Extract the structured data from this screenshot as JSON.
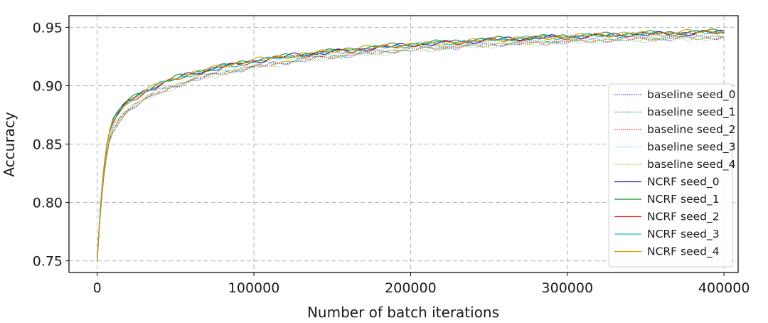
{
  "chart_data": {
    "type": "line",
    "title": "",
    "xlabel": "Number of batch iterations",
    "ylabel": "Accuracy",
    "xlim": [
      -18000,
      409000
    ],
    "ylim": [
      0.74,
      0.96
    ],
    "xticks": [
      0,
      100000,
      200000,
      300000,
      400000
    ],
    "xtick_labels": [
      "0",
      "100000",
      "200000",
      "300000",
      "400000"
    ],
    "yticks": [
      0.75,
      0.8,
      0.85,
      0.9,
      0.95
    ],
    "ytick_labels": [
      "0.75",
      "0.80",
      "0.85",
      "0.90",
      "0.95"
    ],
    "grid": true,
    "legend_position": "right",
    "x": [
      0,
      2500,
      5000,
      7500,
      10000,
      15000,
      20000,
      30000,
      40000,
      50000,
      60000,
      80000,
      100000,
      125000,
      150000,
      175000,
      200000,
      225000,
      250000,
      275000,
      300000,
      325000,
      350000,
      375000,
      400000
    ],
    "series": [
      {
        "name": "baseline seed_0",
        "color": "#3b4cc0",
        "style": "dotted",
        "values": [
          0.75,
          0.8,
          0.833,
          0.852,
          0.862,
          0.873,
          0.88,
          0.888,
          0.895,
          0.9,
          0.905,
          0.911,
          0.916,
          0.921,
          0.925,
          0.928,
          0.931,
          0.933,
          0.935,
          0.937,
          0.938,
          0.939,
          0.94,
          0.941,
          0.942
        ]
      },
      {
        "name": "baseline seed_1",
        "color": "#2ca02c",
        "style": "dotted",
        "values": [
          0.751,
          0.802,
          0.834,
          0.853,
          0.863,
          0.874,
          0.881,
          0.889,
          0.896,
          0.901,
          0.906,
          0.912,
          0.917,
          0.922,
          0.926,
          0.929,
          0.932,
          0.934,
          0.936,
          0.937,
          0.939,
          0.94,
          0.941,
          0.942,
          0.943
        ]
      },
      {
        "name": "baseline seed_2",
        "color": "#d62728",
        "style": "dotted",
        "values": [
          0.749,
          0.8,
          0.832,
          0.851,
          0.861,
          0.872,
          0.879,
          0.888,
          0.894,
          0.9,
          0.904,
          0.911,
          0.916,
          0.921,
          0.925,
          0.928,
          0.931,
          0.933,
          0.935,
          0.936,
          0.938,
          0.939,
          0.94,
          0.941,
          0.941
        ]
      },
      {
        "name": "baseline seed_3",
        "color": "#7fc8e8",
        "style": "dotted",
        "values": [
          0.75,
          0.801,
          0.832,
          0.851,
          0.86,
          0.871,
          0.879,
          0.887,
          0.894,
          0.899,
          0.904,
          0.91,
          0.915,
          0.92,
          0.924,
          0.927,
          0.93,
          0.932,
          0.934,
          0.936,
          0.937,
          0.938,
          0.939,
          0.94,
          0.941
        ]
      },
      {
        "name": "baseline seed_4",
        "color": "#bcbd22",
        "style": "dotted",
        "values": [
          0.75,
          0.801,
          0.833,
          0.852,
          0.862,
          0.873,
          0.88,
          0.888,
          0.895,
          0.9,
          0.905,
          0.911,
          0.916,
          0.921,
          0.925,
          0.928,
          0.931,
          0.933,
          0.935,
          0.937,
          0.938,
          0.939,
          0.94,
          0.941,
          0.942
        ]
      },
      {
        "name": "NCRF seed_0",
        "color": "#1f1f9f",
        "style": "solid",
        "values": [
          0.752,
          0.806,
          0.84,
          0.859,
          0.869,
          0.88,
          0.887,
          0.895,
          0.901,
          0.906,
          0.91,
          0.916,
          0.921,
          0.926,
          0.929,
          0.932,
          0.935,
          0.937,
          0.939,
          0.941,
          0.942,
          0.943,
          0.944,
          0.945,
          0.946
        ]
      },
      {
        "name": "NCRF seed_1",
        "color": "#1a8f1a",
        "style": "solid",
        "values": [
          0.752,
          0.807,
          0.841,
          0.86,
          0.87,
          0.881,
          0.888,
          0.896,
          0.902,
          0.907,
          0.911,
          0.917,
          0.922,
          0.926,
          0.93,
          0.933,
          0.936,
          0.938,
          0.94,
          0.941,
          0.943,
          0.944,
          0.945,
          0.946,
          0.947
        ]
      },
      {
        "name": "NCRF seed_2",
        "color": "#d62728",
        "style": "solid",
        "values": [
          0.751,
          0.805,
          0.839,
          0.858,
          0.868,
          0.879,
          0.886,
          0.894,
          0.901,
          0.905,
          0.91,
          0.916,
          0.921,
          0.925,
          0.929,
          0.932,
          0.935,
          0.937,
          0.939,
          0.94,
          0.942,
          0.943,
          0.944,
          0.945,
          0.946
        ]
      },
      {
        "name": "NCRF seed_3",
        "color": "#17becf",
        "style": "solid",
        "values": [
          0.751,
          0.806,
          0.84,
          0.859,
          0.869,
          0.88,
          0.887,
          0.895,
          0.901,
          0.906,
          0.91,
          0.916,
          0.921,
          0.925,
          0.929,
          0.932,
          0.935,
          0.937,
          0.939,
          0.941,
          0.942,
          0.943,
          0.944,
          0.945,
          0.946
        ]
      },
      {
        "name": "NCRF seed_4",
        "color": "#c8a600",
        "style": "solid",
        "values": [
          0.752,
          0.806,
          0.84,
          0.859,
          0.869,
          0.88,
          0.887,
          0.895,
          0.902,
          0.906,
          0.911,
          0.917,
          0.922,
          0.926,
          0.93,
          0.933,
          0.935,
          0.937,
          0.939,
          0.941,
          0.942,
          0.944,
          0.945,
          0.946,
          0.947
        ]
      }
    ]
  }
}
